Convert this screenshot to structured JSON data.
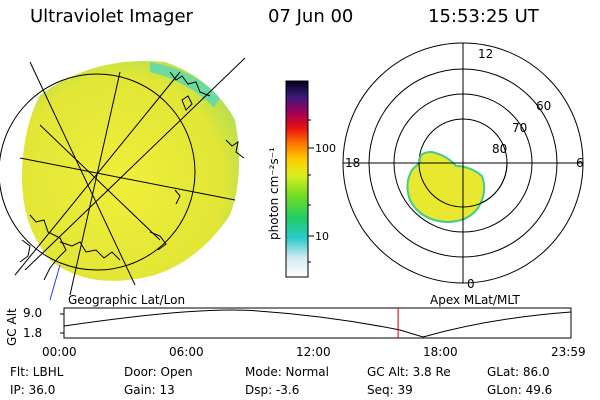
{
  "header": {
    "instrument": "Ultraviolet Imager",
    "date": "07 Jun 00",
    "time": "15:53:25 UT"
  },
  "colorbar": {
    "label": "photon cm⁻²s⁻¹",
    "ticks": [
      "100",
      "10"
    ]
  },
  "polar": {
    "mlt_labels": [
      "12",
      "18",
      "6",
      "0"
    ],
    "mlat_labels": [
      "60",
      "70",
      "80"
    ]
  },
  "panel_labels": {
    "left": "Geographic Lat/Lon",
    "right": "Apex MLat/MLT"
  },
  "alt_plot": {
    "ylabel": "GC Alt",
    "ticks": [
      "9.0",
      "1.8"
    ],
    "times": [
      "00:00",
      "06:00",
      "12:00",
      "18:00",
      "23:59"
    ],
    "current_fraction": 0.659
  },
  "info": {
    "flt": "Flt: LBHL",
    "door": "Door: Open",
    "mode": "Mode: Normal",
    "gc_alt": "GC Alt: 3.8 Re",
    "glat": "GLat:  86.0",
    "ip": "IP: 36.0",
    "gain": "Gain: 13",
    "dsp": "Dsp:  -3.6",
    "seq": "Seq: 39",
    "glon": "GLon:  49.6"
  },
  "colors": {
    "image_fill": "#e6e635",
    "polar_fill": "#e8e830",
    "marker": "#d00000",
    "horizon_line": "#1a3cff"
  }
}
